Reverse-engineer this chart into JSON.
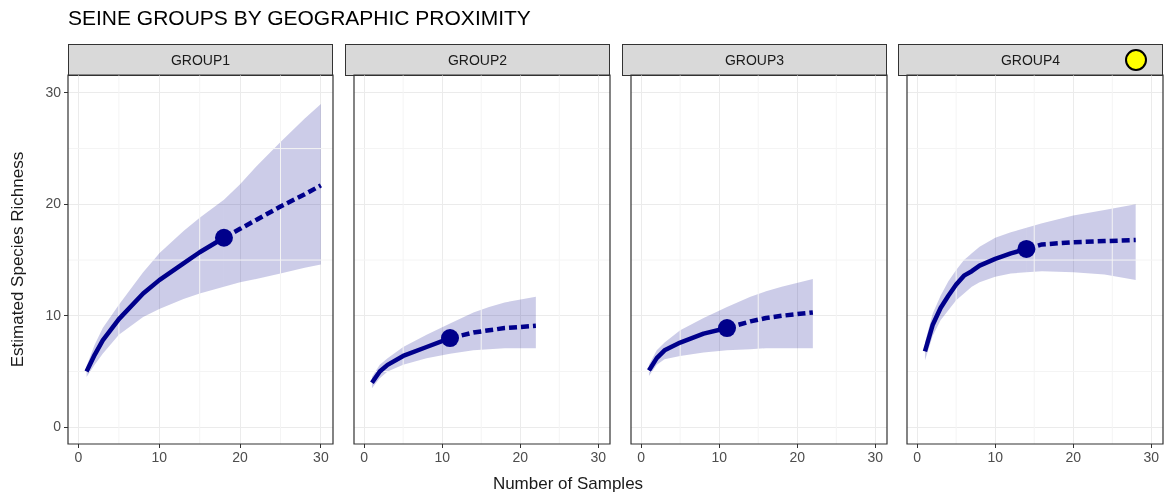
{
  "chart_data": [
    {
      "type": "line",
      "title": "SEINE GROUPS BY GEOGRAPHIC PROXIMITY",
      "subtitle": "GROUP1",
      "ylabel": "Estimated Species Richness",
      "xlim": [
        -1.3,
        31.5
      ],
      "ylim": [
        -1.5,
        31.6
      ],
      "xticks": [
        0,
        10,
        20,
        30
      ],
      "yticks": [
        0,
        10,
        20,
        30
      ],
      "grid": true,
      "series": [
        {
          "type": "line",
          "line_style": "solid",
          "color": "#00008b",
          "x": [
            1,
            2,
            3,
            5,
            8,
            10,
            13,
            15,
            18
          ],
          "values": [
            5,
            6.5,
            7.8,
            9.7,
            12,
            13.2,
            14.7,
            15.7,
            17
          ],
          "lower": [
            4.5,
            5.6,
            6.6,
            8.3,
            9.9,
            10.6,
            11.5,
            12,
            12.6
          ],
          "upper": [
            5.5,
            7.4,
            8.9,
            11,
            13.9,
            15.6,
            17.6,
            18.8,
            20.4
          ]
        },
        {
          "type": "line",
          "line_style": "dashed",
          "color": "#00008b",
          "x": [
            18,
            20,
            22,
            25,
            28,
            30
          ],
          "values": [
            17,
            17.8,
            18.6,
            19.8,
            20.9,
            21.7
          ],
          "lower": [
            12.6,
            13,
            13.3,
            13.8,
            14.3,
            14.6
          ],
          "upper": [
            20.4,
            21.8,
            23.4,
            25.6,
            27.7,
            29
          ]
        },
        {
          "type": "scatter",
          "marker": "circle",
          "color": "#00008b",
          "x": [
            18
          ],
          "values": [
            17
          ]
        }
      ]
    },
    {
      "type": "line",
      "subtitle": "GROUP2",
      "xlabel": "Number of Samples",
      "xlim": [
        -1.3,
        31.5
      ],
      "ylim": [
        -1.5,
        31.6
      ],
      "xticks": [
        0,
        10,
        20,
        30
      ],
      "yticks": [
        0,
        10,
        20,
        30
      ],
      "grid": true,
      "tick_labels": "x",
      "series": [
        {
          "type": "line",
          "line_style": "solid",
          "color": "#00008b",
          "x": [
            1,
            2,
            3,
            5,
            8,
            11
          ],
          "values": [
            4,
            5,
            5.6,
            6.4,
            7.2,
            8
          ],
          "lower": [
            3.5,
            4.4,
            5,
            5.6,
            6.2,
            6.6
          ],
          "upper": [
            4.5,
            5.6,
            6.2,
            7.2,
            8.3,
            9.3
          ]
        },
        {
          "type": "line",
          "line_style": "dashed",
          "color": "#00008b",
          "x": [
            11,
            14,
            16,
            18,
            22
          ],
          "values": [
            8,
            8.5,
            8.7,
            8.9,
            9.1
          ],
          "lower": [
            6.6,
            6.9,
            7,
            7.1,
            7.1
          ],
          "upper": [
            9.3,
            10.3,
            10.8,
            11.2,
            11.7
          ]
        },
        {
          "type": "scatter",
          "marker": "circle",
          "color": "#00008b",
          "x": [
            11
          ],
          "values": [
            8
          ]
        }
      ]
    },
    {
      "type": "line",
      "subtitle": "GROUP3",
      "xlim": [
        -1.3,
        31.5
      ],
      "ylim": [
        -1.5,
        31.6
      ],
      "xticks": [
        0,
        10,
        20,
        30
      ],
      "yticks": [
        0,
        10,
        20,
        30
      ],
      "grid": true,
      "tick_labels": "x",
      "series": [
        {
          "type": "line",
          "line_style": "solid",
          "color": "#00008b",
          "x": [
            1,
            2,
            3,
            5,
            8,
            11
          ],
          "values": [
            5.1,
            6.2,
            6.9,
            7.6,
            8.4,
            8.9
          ],
          "lower": [
            4.6,
            5.6,
            6.1,
            6.4,
            6.7,
            6.9
          ],
          "upper": [
            5.6,
            6.9,
            7.6,
            8.7,
            9.8,
            10.8
          ]
        },
        {
          "type": "line",
          "line_style": "dashed",
          "color": "#00008b",
          "x": [
            11,
            14,
            16,
            18,
            22
          ],
          "values": [
            8.9,
            9.5,
            9.8,
            10,
            10.3
          ],
          "lower": [
            6.9,
            7,
            7.1,
            7.1,
            7.1
          ],
          "upper": [
            10.8,
            11.7,
            12.2,
            12.6,
            13.3
          ]
        },
        {
          "type": "scatter",
          "marker": "circle",
          "color": "#00008b",
          "x": [
            11
          ],
          "values": [
            8.9
          ]
        }
      ]
    },
    {
      "type": "line",
      "subtitle": "GROUP4",
      "xlim": [
        -1.3,
        31.5
      ],
      "ylim": [
        -1.5,
        31.6
      ],
      "xticks": [
        0,
        10,
        20,
        30
      ],
      "yticks": [
        0,
        10,
        20,
        30
      ],
      "grid": true,
      "tick_labels": "x",
      "series": [
        {
          "type": "line",
          "line_style": "solid",
          "color": "#00008b",
          "x": [
            1,
            2,
            3,
            4,
            5,
            6,
            7,
            8,
            10,
            12,
            14
          ],
          "values": [
            6.8,
            9.2,
            10.7,
            11.8,
            12.8,
            13.6,
            14,
            14.5,
            15.1,
            15.6,
            16
          ],
          "lower": [
            6,
            8.2,
            9.6,
            10.5,
            11.4,
            12,
            12.6,
            13,
            13.5,
            13.8,
            13.9
          ],
          "upper": [
            7.6,
            10.2,
            11.8,
            13.1,
            14.1,
            15,
            15.6,
            16.2,
            17,
            17.5,
            17.9
          ]
        },
        {
          "type": "line",
          "line_style": "dashed",
          "color": "#00008b",
          "x": [
            14,
            16,
            20,
            24,
            28
          ],
          "values": [
            16,
            16.4,
            16.6,
            16.7,
            16.8
          ],
          "lower": [
            13.9,
            14,
            13.9,
            13.7,
            13.2
          ],
          "upper": [
            17.9,
            18.3,
            19,
            19.5,
            20
          ]
        },
        {
          "type": "scatter",
          "marker": "circle",
          "color": "#00008b",
          "x": [
            14
          ],
          "values": [
            16
          ]
        }
      ]
    }
  ]
}
